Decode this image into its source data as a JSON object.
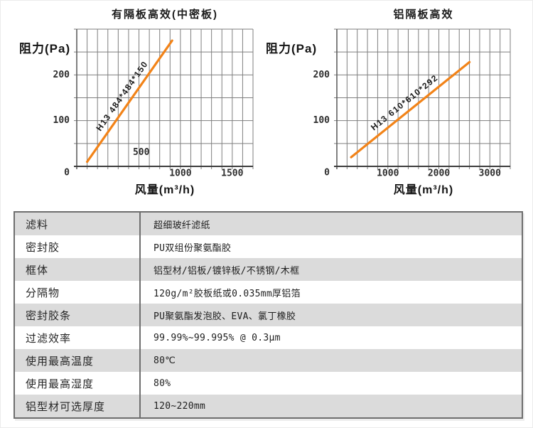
{
  "chart_data": [
    {
      "type": "line",
      "title": "有隔板高效(中密板)",
      "ylabel": "阻力(Pa)",
      "xlabel": "风量(m³/h)",
      "xlim": [
        0,
        1700
      ],
      "ylim": [
        0,
        300
      ],
      "x_grid_step": 100,
      "y_grid_step": 50,
      "grid": true,
      "xticks": [
        {
          "value": 500,
          "label": "500",
          "inside": true
        },
        {
          "value": 1000,
          "label": "1000"
        },
        {
          "value": 1500,
          "label": "1500"
        }
      ],
      "yticks": [
        {
          "value": 0,
          "label": "0"
        },
        {
          "value": 100,
          "label": "100"
        },
        {
          "value": 200,
          "label": "200"
        }
      ],
      "series": [
        {
          "name": "H13 484*484*150",
          "points": [
            [
              100,
              10
            ],
            [
              920,
              275
            ]
          ]
        }
      ]
    },
    {
      "type": "line",
      "title": "铝隔板高效",
      "ylabel": "阻力(Pa)",
      "xlabel": "风量(m³/h)",
      "xlim": [
        0,
        3400
      ],
      "ylim": [
        0,
        300
      ],
      "x_grid_step": 200,
      "y_grid_step": 50,
      "grid": true,
      "xticks": [
        {
          "value": 1000,
          "label": "1000"
        },
        {
          "value": 2000,
          "label": "2000"
        },
        {
          "value": 3000,
          "label": "3000"
        }
      ],
      "yticks": [
        {
          "value": 0,
          "label": "0"
        },
        {
          "value": 100,
          "label": "100"
        },
        {
          "value": 200,
          "label": "200"
        }
      ],
      "series": [
        {
          "name": "H13 610*610*292",
          "points": [
            [
              280,
              20
            ],
            [
              2600,
              228
            ]
          ]
        }
      ]
    }
  ],
  "table": {
    "rows": [
      {
        "label": "滤料",
        "value": "超细玻纤滤纸"
      },
      {
        "label": "密封胶",
        "value": "PU双组份聚氨酯胶"
      },
      {
        "label": "框体",
        "value": "铝型材/铝板/镀锌板/不锈钢/木框"
      },
      {
        "label": "分隔物",
        "value": "120g/m²胶板纸或0.035mm厚铝箔"
      },
      {
        "label": "密封胶条",
        "value": "PU聚氨酯发泡胶、EVA、氯丁橡胶"
      },
      {
        "label": "过滤效率",
        "value": "99.99%~99.995% @ 0.3μm"
      },
      {
        "label": "使用最高温度",
        "value": "80℃"
      },
      {
        "label": "使用最高湿度",
        "value": "80%"
      },
      {
        "label": "铝型材可选厚度",
        "value": "120~220mm"
      }
    ]
  },
  "colors": {
    "accent": "#f28318",
    "grid": "#7e7e7e",
    "axis": "#3c3c3c",
    "frame": "#565656",
    "table_border": "#6e6e6e",
    "row_gray": "#dbdbdb",
    "row_white": "#ffffff",
    "text": "#1e1e1e"
  }
}
